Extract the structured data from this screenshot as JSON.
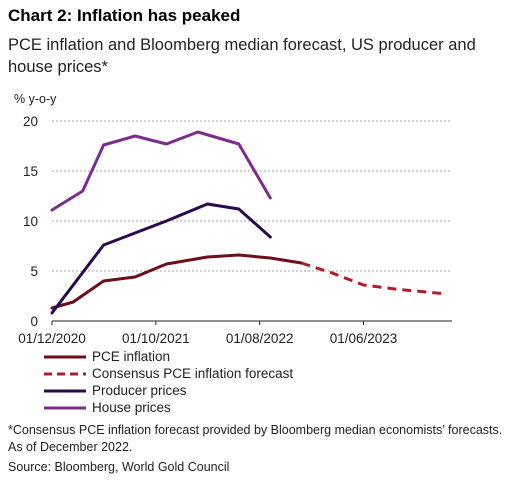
{
  "header": {
    "title": "Chart 2: Inflation has peaked",
    "subtitle": "PCE inflation and Bloomberg median forecast, US producer and house prices*"
  },
  "footer": {
    "note": "*Consensus PCE inflation forecast provided by Bloomberg median economists’ forecasts. As of December 2022.",
    "source": "Source: Bloomberg, World Gold Council"
  },
  "chart_data": {
    "type": "line",
    "ylabel": "% y-o-y",
    "ylim": [
      0,
      20
    ],
    "yticks": [
      0,
      5,
      10,
      15,
      20
    ],
    "xlim": [
      "2020-12-01",
      "2024-02-15"
    ],
    "xticks": [
      {
        "date": "2020-12-01",
        "label": "01/12/2020"
      },
      {
        "date": "2021-10-01",
        "label": "01/10/2021"
      },
      {
        "date": "2022-08-01",
        "label": "01/08/2022"
      },
      {
        "date": "2023-06-01",
        "label": "01/06/2023"
      }
    ],
    "grid": "horizontal dashed",
    "legend_position": "bottom-left",
    "series": [
      {
        "name": "PCE inflation",
        "color": "#6b0f1a",
        "dash": "solid",
        "points": [
          [
            "2020-12-01",
            1.3
          ],
          [
            "2021-02-01",
            1.9
          ],
          [
            "2021-05-01",
            4.0
          ],
          [
            "2021-08-01",
            4.4
          ],
          [
            "2021-11-01",
            5.7
          ],
          [
            "2022-03-01",
            6.4
          ],
          [
            "2022-06-01",
            6.6
          ],
          [
            "2022-09-01",
            6.3
          ],
          [
            "2022-12-01",
            5.8
          ]
        ]
      },
      {
        "name": "Consensus PCE inflation forecast",
        "color": "#b01e2e",
        "dash": "dashed",
        "points": [
          [
            "2022-12-01",
            5.8
          ],
          [
            "2023-03-01",
            4.8
          ],
          [
            "2023-06-01",
            3.6
          ],
          [
            "2023-09-01",
            3.2
          ],
          [
            "2023-12-01",
            2.9
          ],
          [
            "2024-02-01",
            2.7
          ]
        ]
      },
      {
        "name": "Producer prices",
        "color": "#2a0a4f",
        "dash": "solid",
        "points": [
          [
            "2020-12-01",
            0.8
          ],
          [
            "2021-05-01",
            7.6
          ],
          [
            "2021-08-01",
            8.8
          ],
          [
            "2021-11-01",
            10.0
          ],
          [
            "2022-03-01",
            11.7
          ],
          [
            "2022-06-01",
            11.2
          ],
          [
            "2022-09-01",
            8.4
          ]
        ]
      },
      {
        "name": "House prices",
        "color": "#7b2d8e",
        "dash": "solid",
        "points": [
          [
            "2020-12-01",
            11.1
          ],
          [
            "2021-03-01",
            13.0
          ],
          [
            "2021-05-01",
            17.6
          ],
          [
            "2021-08-01",
            18.5
          ],
          [
            "2021-11-01",
            17.7
          ],
          [
            "2022-02-01",
            18.9
          ],
          [
            "2022-06-01",
            17.7
          ],
          [
            "2022-09-01",
            12.3
          ]
        ]
      }
    ]
  }
}
